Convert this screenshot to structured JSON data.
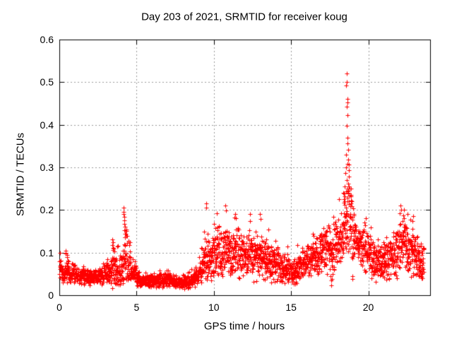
{
  "colors": {
    "background": "#ffffff",
    "axis": "#000000",
    "grid": "#999999",
    "points": "#ff0000"
  },
  "chart_data": {
    "type": "scatter",
    "title": "Day 203 of 2021, SRMTID for receiver koug",
    "xlabel": "GPS time / hours",
    "ylabel": "SRMTID / TECUs",
    "xlim": [
      0,
      24
    ],
    "ylim": [
      0,
      0.6
    ],
    "xticks": [
      0,
      5,
      10,
      15,
      20
    ],
    "xtick_labels": [
      "0",
      "5",
      "10",
      "15",
      "20"
    ],
    "yticks": [
      0,
      0.1,
      0.2,
      0.3,
      0.4,
      0.5,
      0.6
    ],
    "ytick_labels": [
      "0",
      "0.1",
      "0.2",
      "0.3",
      "0.4",
      "0.5",
      "0.6"
    ],
    "grid": true,
    "legend": "none",
    "marker": "plus",
    "marker_size_px": 7,
    "color": "#ff0000",
    "samples_per_hour": 120,
    "profile_step_hours": 0.2,
    "profile_bins": [
      [
        0.0,
        0.06,
        0.022
      ],
      [
        0.2,
        0.05,
        0.018
      ],
      [
        0.4,
        0.062,
        0.032
      ],
      [
        0.6,
        0.048,
        0.018
      ],
      [
        0.8,
        0.05,
        0.022
      ],
      [
        1.0,
        0.045,
        0.018
      ],
      [
        1.2,
        0.042,
        0.016
      ],
      [
        1.4,
        0.045,
        0.018
      ],
      [
        1.6,
        0.042,
        0.016
      ],
      [
        1.8,
        0.04,
        0.015
      ],
      [
        2.0,
        0.042,
        0.016
      ],
      [
        2.2,
        0.045,
        0.018
      ],
      [
        2.4,
        0.043,
        0.016
      ],
      [
        2.6,
        0.045,
        0.018
      ],
      [
        2.8,
        0.048,
        0.018
      ],
      [
        3.0,
        0.05,
        0.02
      ],
      [
        3.2,
        0.055,
        0.028
      ],
      [
        3.4,
        0.066,
        0.045
      ],
      [
        3.6,
        0.058,
        0.032
      ],
      [
        3.8,
        0.055,
        0.03
      ],
      [
        4.0,
        0.062,
        0.038
      ],
      [
        4.2,
        0.1,
        0.08
      ],
      [
        4.4,
        0.075,
        0.05
      ],
      [
        4.6,
        0.05,
        0.025
      ],
      [
        4.8,
        0.052,
        0.028
      ],
      [
        5.0,
        0.04,
        0.018
      ],
      [
        5.2,
        0.036,
        0.015
      ],
      [
        5.4,
        0.034,
        0.014
      ],
      [
        5.6,
        0.035,
        0.015
      ],
      [
        5.8,
        0.033,
        0.014
      ],
      [
        6.0,
        0.035,
        0.015
      ],
      [
        6.2,
        0.033,
        0.014
      ],
      [
        6.4,
        0.035,
        0.016
      ],
      [
        6.6,
        0.034,
        0.015
      ],
      [
        6.8,
        0.035,
        0.016
      ],
      [
        7.0,
        0.036,
        0.016
      ],
      [
        7.2,
        0.034,
        0.015
      ],
      [
        7.4,
        0.03,
        0.014
      ],
      [
        7.6,
        0.028,
        0.013
      ],
      [
        7.8,
        0.03,
        0.014
      ],
      [
        8.0,
        0.032,
        0.015
      ],
      [
        8.2,
        0.03,
        0.014
      ],
      [
        8.4,
        0.033,
        0.016
      ],
      [
        8.6,
        0.038,
        0.018
      ],
      [
        8.8,
        0.046,
        0.022
      ],
      [
        9.0,
        0.06,
        0.03
      ],
      [
        9.2,
        0.075,
        0.04
      ],
      [
        9.4,
        0.085,
        0.048
      ],
      [
        9.6,
        0.08,
        0.045
      ],
      [
        9.8,
        0.092,
        0.05
      ],
      [
        10.0,
        0.1,
        0.055
      ],
      [
        10.2,
        0.105,
        0.058
      ],
      [
        10.4,
        0.095,
        0.05
      ],
      [
        10.6,
        0.1,
        0.055
      ],
      [
        10.8,
        0.1,
        0.058
      ],
      [
        11.0,
        0.095,
        0.05
      ],
      [
        11.2,
        0.105,
        0.058
      ],
      [
        11.4,
        0.11,
        0.06
      ],
      [
        11.6,
        0.1,
        0.055
      ],
      [
        11.8,
        0.095,
        0.05
      ],
      [
        12.0,
        0.09,
        0.046
      ],
      [
        12.2,
        0.1,
        0.054
      ],
      [
        12.4,
        0.09,
        0.05
      ],
      [
        12.6,
        0.095,
        0.05
      ],
      [
        12.8,
        0.085,
        0.045
      ],
      [
        13.0,
        0.09,
        0.052
      ],
      [
        13.2,
        0.085,
        0.045
      ],
      [
        13.4,
        0.08,
        0.04
      ],
      [
        13.6,
        0.075,
        0.04
      ],
      [
        13.8,
        0.07,
        0.038
      ],
      [
        14.0,
        0.075,
        0.04
      ],
      [
        14.2,
        0.07,
        0.038
      ],
      [
        14.4,
        0.065,
        0.034
      ],
      [
        14.6,
        0.06,
        0.03
      ],
      [
        14.8,
        0.055,
        0.028
      ],
      [
        15.0,
        0.05,
        0.026
      ],
      [
        15.2,
        0.055,
        0.028
      ],
      [
        15.4,
        0.065,
        0.03
      ],
      [
        15.6,
        0.07,
        0.032
      ],
      [
        15.8,
        0.075,
        0.035
      ],
      [
        16.0,
        0.08,
        0.038
      ],
      [
        16.2,
        0.085,
        0.04
      ],
      [
        16.4,
        0.095,
        0.045
      ],
      [
        16.6,
        0.09,
        0.042
      ],
      [
        16.8,
        0.1,
        0.048
      ],
      [
        17.0,
        0.11,
        0.052
      ],
      [
        17.2,
        0.105,
        0.05
      ],
      [
        17.4,
        0.11,
        0.055
      ],
      [
        17.6,
        0.108,
        0.068
      ],
      [
        17.8,
        0.12,
        0.058
      ],
      [
        18.0,
        0.13,
        0.06
      ],
      [
        18.2,
        0.142,
        0.065
      ],
      [
        18.4,
        0.16,
        0.07
      ],
      [
        18.6,
        0.185,
        0.08
      ],
      [
        18.8,
        0.17,
        0.085
      ],
      [
        19.0,
        0.14,
        0.068
      ],
      [
        19.2,
        0.122,
        0.055
      ],
      [
        19.4,
        0.115,
        0.05
      ],
      [
        19.6,
        0.11,
        0.05
      ],
      [
        19.8,
        0.1,
        0.046
      ],
      [
        20.0,
        0.095,
        0.044
      ],
      [
        20.2,
        0.085,
        0.04
      ],
      [
        20.4,
        0.08,
        0.04
      ],
      [
        20.6,
        0.075,
        0.038
      ],
      [
        20.8,
        0.08,
        0.04
      ],
      [
        21.0,
        0.085,
        0.044
      ],
      [
        21.2,
        0.08,
        0.044
      ],
      [
        21.4,
        0.09,
        0.046
      ],
      [
        21.6,
        0.095,
        0.048
      ],
      [
        21.8,
        0.102,
        0.05
      ],
      [
        22.0,
        0.13,
        0.062
      ],
      [
        22.2,
        0.138,
        0.062
      ],
      [
        22.4,
        0.11,
        0.055
      ],
      [
        22.6,
        0.095,
        0.048
      ],
      [
        22.8,
        0.1,
        0.05
      ],
      [
        23.0,
        0.09,
        0.048
      ],
      [
        23.2,
        0.08,
        0.042
      ],
      [
        23.4,
        0.074,
        0.038
      ]
    ],
    "outlier_points": [
      [
        18.6,
        0.52
      ],
      [
        18.61,
        0.5
      ],
      [
        18.58,
        0.492
      ],
      [
        18.63,
        0.46
      ],
      [
        18.64,
        0.452
      ],
      [
        18.6,
        0.443
      ],
      [
        18.66,
        0.422
      ],
      [
        18.62,
        0.398
      ],
      [
        18.67,
        0.37
      ],
      [
        18.63,
        0.356
      ],
      [
        18.68,
        0.342
      ],
      [
        18.58,
        0.33
      ],
      [
        18.71,
        0.318
      ],
      [
        18.65,
        0.308
      ],
      [
        18.55,
        0.3
      ],
      [
        18.73,
        0.294
      ],
      [
        18.52,
        0.286
      ],
      [
        18.76,
        0.278
      ],
      [
        18.59,
        0.27
      ],
      [
        18.69,
        0.262
      ],
      [
        18.46,
        0.255
      ],
      [
        18.79,
        0.25
      ],
      [
        18.56,
        0.244
      ],
      [
        18.72,
        0.238
      ],
      [
        18.48,
        0.232
      ],
      [
        18.66,
        0.228
      ],
      [
        18.36,
        0.24
      ],
      [
        18.41,
        0.226
      ],
      [
        18.86,
        0.235
      ],
      [
        18.9,
        0.222
      ],
      [
        4.17,
        0.205
      ],
      [
        4.18,
        0.196
      ],
      [
        4.16,
        0.19
      ],
      [
        4.2,
        0.184
      ],
      [
        4.21,
        0.176
      ],
      [
        4.19,
        0.168
      ],
      [
        4.23,
        0.16
      ],
      [
        4.22,
        0.152
      ],
      [
        4.25,
        0.144
      ],
      [
        4.24,
        0.136
      ],
      [
        3.44,
        0.131
      ],
      [
        3.47,
        0.124
      ],
      [
        3.42,
        0.117
      ],
      [
        3.52,
        0.11
      ],
      [
        9.5,
        0.215
      ],
      [
        9.52,
        0.205
      ],
      [
        10.74,
        0.21
      ],
      [
        10.77,
        0.199
      ],
      [
        11.38,
        0.19
      ],
      [
        11.32,
        0.183
      ],
      [
        13.0,
        0.19
      ],
      [
        13.04,
        0.179
      ],
      [
        16.4,
        0.144
      ],
      [
        17.58,
        0.024
      ],
      [
        17.61,
        0.034
      ],
      [
        17.56,
        0.044
      ],
      [
        15.1,
        0.03
      ],
      [
        15.16,
        0.026
      ],
      [
        18.95,
        0.045
      ],
      [
        18.98,
        0.038
      ],
      [
        20.5,
        0.032
      ],
      [
        21.15,
        0.036
      ],
      [
        21.05,
        0.042
      ],
      [
        22.08,
        0.21
      ],
      [
        22.12,
        0.201
      ],
      [
        22.04,
        0.193
      ],
      [
        22.85,
        0.155
      ],
      [
        0.4,
        0.105
      ],
      [
        0.42,
        0.098
      ],
      [
        4.77,
        0.085
      ]
    ]
  }
}
